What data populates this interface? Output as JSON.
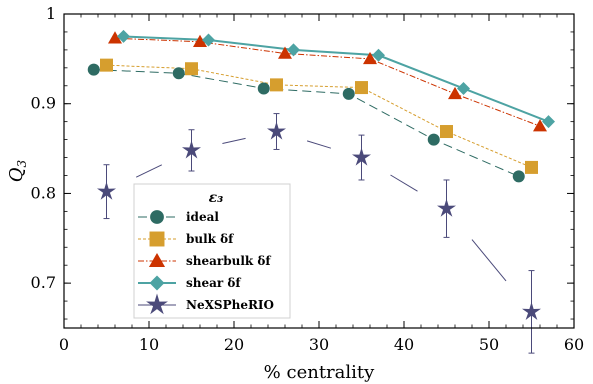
{
  "chart_data": {
    "type": "line",
    "xlabel": "% centrality",
    "ylabel": "Q",
    "ylabel_sub": "3",
    "xlim": [
      0,
      60
    ],
    "ylim": [
      0.65,
      1.0
    ],
    "xticks": [
      0,
      10,
      20,
      30,
      40,
      50,
      60
    ],
    "xtick_labels": [
      "0",
      "10",
      "20",
      "30",
      "40",
      "50",
      "60"
    ],
    "yticks": [
      0.7,
      0.8,
      0.9,
      1.0
    ],
    "ytick_labels": [
      "0.7",
      "0.8",
      "0.9",
      "1"
    ],
    "legend": {
      "title": "ε₃",
      "placement": "lower-left"
    },
    "series": [
      {
        "name": "ideal",
        "color": "#2e6b63",
        "marker": "circle",
        "line": "dashed",
        "x": [
          3.5,
          13.5,
          23.5,
          33.5,
          43.5,
          53.5
        ],
        "y": [
          0.938,
          0.934,
          0.917,
          0.911,
          0.86,
          0.819
        ]
      },
      {
        "name": "bulk δf",
        "color": "#d69e2e",
        "marker": "square",
        "line": "dotted",
        "x": [
          5,
          15,
          25,
          35,
          45,
          55
        ],
        "y": [
          0.943,
          0.939,
          0.921,
          0.918,
          0.869,
          0.829
        ]
      },
      {
        "name": "shearbulk δf",
        "color": "#cc3300",
        "marker": "triangle",
        "line": "dashdot",
        "x": [
          6,
          16,
          26,
          36,
          46,
          56
        ],
        "y": [
          0.973,
          0.969,
          0.956,
          0.95,
          0.911,
          0.875
        ]
      },
      {
        "name": "shear δf",
        "color": "#4da3a3",
        "marker": "diamond",
        "line": "solid",
        "x": [
          7,
          17,
          27,
          37,
          47,
          57
        ],
        "y": [
          0.975,
          0.971,
          0.96,
          0.954,
          0.917,
          0.88
        ]
      },
      {
        "name": "NeXSPheRIO",
        "color": "#4b4a7a",
        "marker": "star",
        "line": "segments",
        "x": [
          5,
          15,
          25,
          35,
          45,
          55
        ],
        "y": [
          0.802,
          0.848,
          0.869,
          0.84,
          0.783,
          0.668
        ],
        "yerr": [
          0.03,
          0.023,
          0.02,
          0.025,
          0.032,
          0.046
        ]
      }
    ]
  }
}
